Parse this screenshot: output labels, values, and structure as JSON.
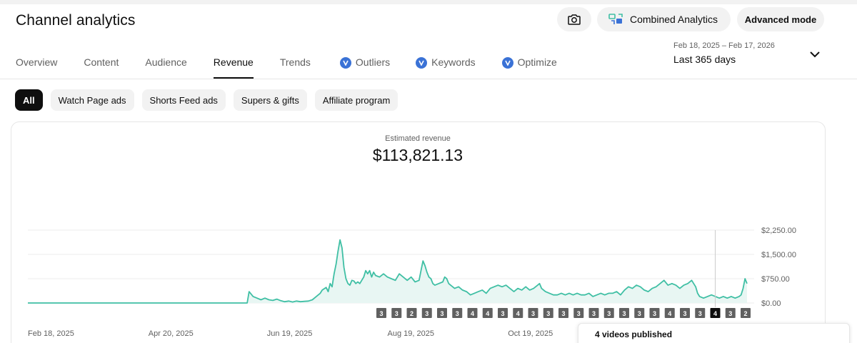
{
  "header": {
    "title": "Channel analytics",
    "camera_icon": "camera-icon",
    "combined_label": "Combined Analytics",
    "combined_icon": "combined-analytics-icon",
    "advanced_label": "Advanced mode"
  },
  "tabs": [
    {
      "label": "Overview",
      "active": false
    },
    {
      "label": "Content",
      "active": false
    },
    {
      "label": "Audience",
      "active": false
    },
    {
      "label": "Revenue",
      "active": true
    },
    {
      "label": "Trends",
      "active": false
    },
    {
      "label": "Outliers",
      "active": false,
      "icon": "vidiq-icon"
    },
    {
      "label": "Keywords",
      "active": false,
      "icon": "vidiq-icon"
    },
    {
      "label": "Optimize",
      "active": false,
      "icon": "vidiq-icon"
    }
  ],
  "date_range": {
    "range_text": "Feb 18, 2025 – Feb 17, 2026",
    "period_label": "Last 365 days"
  },
  "filters": [
    {
      "label": "All",
      "selected": true
    },
    {
      "label": "Watch Page ads",
      "selected": false
    },
    {
      "label": "Shorts Feed ads",
      "selected": false
    },
    {
      "label": "Supers & gifts",
      "selected": false
    },
    {
      "label": "Affiliate program",
      "selected": false
    }
  ],
  "metric": {
    "label": "Estimated revenue",
    "value": "$113,821.13"
  },
  "tooltip": {
    "title": "4 videos published"
  },
  "colors": {
    "line": "#3fbfa4",
    "fill": "#e8f6f3",
    "marker_bg": "#606060",
    "marker_active_bg": "#0f0f0f"
  },
  "chart_data": {
    "type": "area",
    "ylim": [
      0,
      2250
    ],
    "y_ticks": [
      {
        "value": 2250,
        "label": "$2,250.00"
      },
      {
        "value": 1500,
        "label": "$1,500.00"
      },
      {
        "value": 750,
        "label": "$750.00"
      },
      {
        "value": 0,
        "label": "$0.00"
      }
    ],
    "x_ticks": [
      {
        "day": 0,
        "label": "Feb 18, 2025"
      },
      {
        "day": 61,
        "label": "Apr 20, 2025"
      },
      {
        "day": 121,
        "label": "Jun 19, 2025"
      },
      {
        "day": 182,
        "label": "Aug 19, 2025"
      },
      {
        "day": 243,
        "label": "Oct 19, 2025"
      }
    ],
    "x_days_total": 364,
    "series": [
      {
        "points": [
          [
            0,
            0
          ],
          [
            111,
            0
          ],
          [
            112,
            350
          ],
          [
            114,
            200
          ],
          [
            116,
            150
          ],
          [
            118,
            100
          ],
          [
            120,
            150
          ],
          [
            122,
            100
          ],
          [
            124,
            80
          ],
          [
            126,
            120
          ],
          [
            128,
            70
          ],
          [
            130,
            40
          ],
          [
            132,
            60
          ],
          [
            134,
            30
          ],
          [
            136,
            60
          ],
          [
            138,
            40
          ],
          [
            140,
            50
          ],
          [
            142,
            60
          ],
          [
            144,
            100
          ],
          [
            146,
            200
          ],
          [
            148,
            300
          ],
          [
            149,
            400
          ],
          [
            151,
            480
          ],
          [
            152,
            350
          ],
          [
            153,
            600
          ],
          [
            154,
            500
          ],
          [
            155,
            900
          ],
          [
            156,
            1200
          ],
          [
            157,
            1600
          ],
          [
            158,
            1950
          ],
          [
            159,
            1700
          ],
          [
            160,
            1100
          ],
          [
            161,
            750
          ],
          [
            162,
            600
          ],
          [
            163,
            550
          ],
          [
            164,
            700
          ],
          [
            165,
            680
          ],
          [
            166,
            600
          ],
          [
            167,
            650
          ],
          [
            168,
            600
          ],
          [
            169,
            700
          ],
          [
            170,
            800
          ],
          [
            171,
            1000
          ],
          [
            172,
            900
          ],
          [
            173,
            1000
          ],
          [
            174,
            800
          ],
          [
            175,
            950
          ],
          [
            176,
            850
          ],
          [
            178,
            800
          ],
          [
            180,
            900
          ],
          [
            182,
            800
          ],
          [
            184,
            750
          ],
          [
            186,
            700
          ],
          [
            188,
            900
          ],
          [
            190,
            800
          ],
          [
            192,
            700
          ],
          [
            194,
            800
          ],
          [
            196,
            650
          ],
          [
            198,
            700
          ],
          [
            199,
            1000
          ],
          [
            200,
            1300
          ],
          [
            201,
            1150
          ],
          [
            202,
            950
          ],
          [
            203,
            800
          ],
          [
            204,
            750
          ],
          [
            205,
            600
          ],
          [
            206,
            550
          ],
          [
            208,
            600
          ],
          [
            210,
            650
          ],
          [
            211,
            800
          ],
          [
            212,
            750
          ],
          [
            213,
            600
          ],
          [
            214,
            550
          ],
          [
            216,
            450
          ],
          [
            218,
            500
          ],
          [
            220,
            400
          ],
          [
            222,
            350
          ],
          [
            224,
            250
          ],
          [
            226,
            300
          ],
          [
            228,
            350
          ],
          [
            230,
            400
          ],
          [
            232,
            300
          ],
          [
            234,
            450
          ],
          [
            236,
            500
          ],
          [
            238,
            550
          ],
          [
            240,
            500
          ],
          [
            242,
            550
          ],
          [
            244,
            450
          ],
          [
            246,
            350
          ],
          [
            248,
            450
          ],
          [
            250,
            400
          ],
          [
            252,
            500
          ],
          [
            254,
            400
          ],
          [
            256,
            450
          ],
          [
            258,
            550
          ],
          [
            259,
            600
          ],
          [
            260,
            450
          ],
          [
            262,
            350
          ],
          [
            264,
            300
          ],
          [
            266,
            250
          ],
          [
            268,
            250
          ],
          [
            270,
            300
          ],
          [
            272,
            250
          ],
          [
            274,
            300
          ],
          [
            276,
            250
          ],
          [
            278,
            300
          ],
          [
            280,
            250
          ],
          [
            282,
            250
          ],
          [
            284,
            300
          ],
          [
            286,
            200
          ],
          [
            288,
            250
          ],
          [
            290,
            300
          ],
          [
            292,
            250
          ],
          [
            294,
            300
          ],
          [
            296,
            300
          ],
          [
            298,
            350
          ],
          [
            300,
            250
          ],
          [
            302,
            400
          ],
          [
            304,
            500
          ],
          [
            306,
            450
          ],
          [
            308,
            550
          ],
          [
            310,
            500
          ],
          [
            312,
            400
          ],
          [
            314,
            350
          ],
          [
            316,
            450
          ],
          [
            318,
            500
          ],
          [
            320,
            600
          ],
          [
            322,
            700
          ],
          [
            324,
            550
          ],
          [
            326,
            600
          ],
          [
            328,
            550
          ],
          [
            330,
            450
          ],
          [
            332,
            550
          ],
          [
            334,
            600
          ],
          [
            336,
            700
          ],
          [
            337,
            600
          ],
          [
            338,
            500
          ],
          [
            339,
            300
          ],
          [
            340,
            200
          ],
          [
            342,
            150
          ],
          [
            344,
            200
          ],
          [
            346,
            250
          ],
          [
            348,
            200
          ],
          [
            350,
            150
          ],
          [
            352,
            200
          ],
          [
            354,
            150
          ],
          [
            356,
            200
          ],
          [
            358,
            150
          ],
          [
            360,
            200
          ],
          [
            361,
            250
          ],
          [
            362,
            450
          ],
          [
            363,
            750
          ],
          [
            364,
            600
          ]
        ]
      }
    ],
    "markers": {
      "labels": [
        "3",
        "3",
        "2",
        "3",
        "3",
        "3",
        "4",
        "4",
        "3",
        "4",
        "3",
        "3",
        "3",
        "3",
        "3",
        "3",
        "3",
        "3",
        "3",
        "4",
        "3",
        "3",
        "4",
        "3",
        "2"
      ],
      "active_index": 22
    }
  }
}
